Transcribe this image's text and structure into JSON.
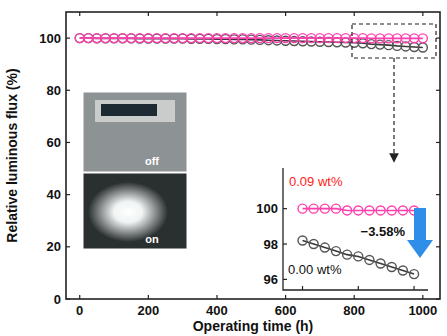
{
  "chart_data": [
    {
      "type": "line",
      "x_label": "Operating time (h)",
      "y_label": "Relative luminous flux (%)",
      "x": [
        0,
        25,
        50,
        75,
        100,
        125,
        150,
        175,
        200,
        225,
        250,
        275,
        300,
        325,
        350,
        375,
        400,
        425,
        450,
        475,
        500,
        525,
        550,
        575,
        600,
        625,
        650,
        675,
        700,
        725,
        750,
        775,
        800,
        825,
        850,
        875,
        900,
        925,
        950,
        975,
        1000
      ],
      "series": [
        {
          "color": "#ff3fae",
          "marker": "circle",
          "values": [
            100.0,
            100.0,
            100.0,
            100.0,
            100.0,
            100.0,
            100.0,
            100.0,
            100.0,
            100.0,
            100.0,
            100.0,
            100.0,
            100.0,
            100.0,
            100.0,
            100.0,
            100.0,
            100.0,
            100.0,
            100.0,
            100.0,
            100.0,
            100.0,
            100.0,
            100.0,
            100.0,
            100.0,
            100.0,
            100.0,
            100.0,
            100.0,
            100.0,
            100.0,
            99.9,
            99.9,
            99.9,
            99.9,
            99.9,
            99.9,
            99.9
          ]
        },
        {
          "color": "#3a3a3a",
          "marker": "circle",
          "values": [
            100.0,
            100.0,
            99.9,
            99.9,
            99.9,
            99.9,
            99.9,
            99.8,
            99.8,
            99.8,
            99.8,
            99.8,
            99.8,
            99.7,
            99.7,
            99.7,
            99.6,
            99.6,
            99.5,
            99.5,
            99.4,
            99.3,
            99.2,
            99.1,
            99.0,
            98.9,
            98.8,
            98.7,
            98.6,
            98.5,
            98.4,
            98.3,
            98.2,
            98.0,
            97.7,
            97.5,
            97.3,
            97.0,
            96.8,
            96.6,
            96.4
          ]
        }
      ],
      "xlim": [
        -40,
        1050
      ],
      "ylim": [
        0,
        110
      ],
      "xticks": [
        0,
        200,
        400,
        600,
        800,
        1000
      ],
      "yticks": [
        0,
        20,
        40,
        60,
        80,
        100
      ],
      "annotations": [
        "off",
        "on"
      ]
    },
    {
      "type": "line",
      "x": [
        800,
        820,
        840,
        860,
        880,
        900,
        920,
        940,
        960,
        980,
        1000
      ],
      "series": [
        {
          "name": "0.09 wt%",
          "color": "#ff3fae",
          "marker": "circle",
          "values": [
            100.0,
            100.0,
            100.0,
            100.0,
            99.9,
            99.9,
            99.9,
            99.9,
            99.9,
            99.9,
            99.9
          ]
        },
        {
          "name": "0.00 wt%",
          "color": "#3a3a3a",
          "marker": "circle",
          "values": [
            98.2,
            98.0,
            97.8,
            97.6,
            97.4,
            97.3,
            97.1,
            96.9,
            96.7,
            96.5,
            96.3
          ]
        }
      ],
      "xlim": [
        765,
        1025
      ],
      "ylim": [
        95.4,
        102.3
      ],
      "xticks": [
        800,
        900,
        1000
      ],
      "yticks": [
        96,
        98,
        100
      ],
      "tick_labels": "y",
      "annotations": [
        "−3.58%"
      ]
    }
  ]
}
